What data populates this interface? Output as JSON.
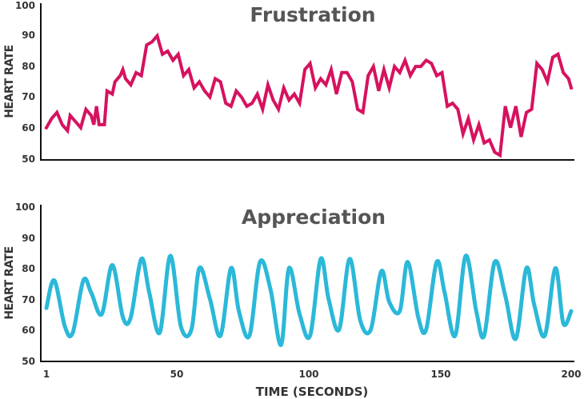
{
  "chart_data": [
    {
      "type": "line",
      "title": "Frustration",
      "ylabel": "HEART RATE",
      "xlabel": "",
      "ylim": [
        50,
        100
      ],
      "xlim": [
        1,
        200
      ],
      "yticks": [
        "100",
        "90",
        "80",
        "70",
        "60",
        "50"
      ],
      "xticks": [],
      "color": "#d6125f",
      "x": [
        1,
        3,
        5,
        7,
        9,
        10,
        12,
        14,
        16,
        18,
        19,
        20,
        21,
        23,
        24,
        26,
        27,
        29,
        30,
        31,
        33,
        35,
        37,
        39,
        41,
        43,
        45,
        47,
        49,
        51,
        53,
        55,
        57,
        59,
        61,
        63,
        65,
        67,
        69,
        71,
        73,
        75,
        77,
        79,
        81,
        83,
        85,
        87,
        89,
        91,
        93,
        95,
        97,
        99,
        101,
        103,
        105,
        107,
        109,
        111,
        113,
        115,
        117,
        119,
        121,
        123,
        125,
        127,
        129,
        131,
        133,
        135,
        137,
        139,
        141,
        143,
        145,
        147,
        149,
        151,
        153,
        155,
        157,
        159,
        161,
        163,
        165,
        167,
        169,
        171,
        173,
        175,
        177,
        179,
        181,
        183,
        185,
        187,
        189,
        191,
        193,
        195,
        197,
        199,
        200
      ],
      "values": [
        60,
        63,
        65,
        61,
        59,
        64,
        62,
        60,
        66,
        64,
        61,
        67,
        61,
        61,
        72,
        71,
        75,
        77,
        79,
        76,
        74,
        78,
        77,
        87,
        88,
        90,
        84,
        85,
        82,
        84,
        77,
        79,
        73,
        75,
        72,
        70,
        76,
        75,
        68,
        67,
        72,
        70,
        67,
        68,
        71,
        66,
        74,
        69,
        66,
        73,
        69,
        71,
        68,
        79,
        81,
        73,
        76,
        74,
        79,
        71,
        78,
        78,
        75,
        66,
        65,
        77,
        80,
        72,
        79,
        73,
        80,
        78,
        82,
        77,
        80,
        80,
        82,
        81,
        77,
        78,
        67,
        68,
        66,
        58,
        63,
        56,
        61,
        55,
        56,
        52,
        51,
        67,
        60,
        67,
        57,
        65,
        66,
        81,
        79,
        75,
        83,
        84,
        78,
        76,
        73
      ]
    },
    {
      "type": "line",
      "title": "Appreciation",
      "ylabel": "HEART RATE",
      "xlabel": "TIME (SECONDS)",
      "ylim": [
        50,
        100
      ],
      "xlim": [
        1,
        200
      ],
      "yticks": [
        "100",
        "90",
        "80",
        "70",
        "60",
        "50"
      ],
      "xticks": [
        "1",
        "50",
        "100",
        "150",
        "200"
      ],
      "color": "#2bb8d9",
      "x": [
        1,
        4,
        8,
        11,
        15,
        18,
        22,
        26,
        30,
        33,
        37,
        40,
        44,
        48,
        52,
        56,
        59,
        63,
        67,
        71,
        74,
        78,
        82,
        86,
        90,
        93,
        97,
        101,
        105,
        108,
        112,
        116,
        120,
        124,
        128,
        131,
        135,
        138,
        142,
        145,
        149,
        152,
        156,
        160,
        164,
        167,
        171,
        175,
        179,
        183,
        186,
        190,
        194,
        197,
        200
      ],
      "values": [
        67,
        76,
        61,
        59,
        76,
        72,
        65,
        81,
        64,
        64,
        83,
        72,
        59,
        84,
        61,
        60,
        80,
        70,
        58,
        80,
        66,
        58,
        82,
        73,
        55,
        80,
        65,
        58,
        83,
        70,
        60,
        83,
        63,
        60,
        79,
        69,
        66,
        82,
        64,
        60,
        82,
        72,
        58,
        84,
        66,
        58,
        82,
        71,
        57,
        80,
        68,
        58,
        80,
        62,
        66
      ]
    }
  ]
}
